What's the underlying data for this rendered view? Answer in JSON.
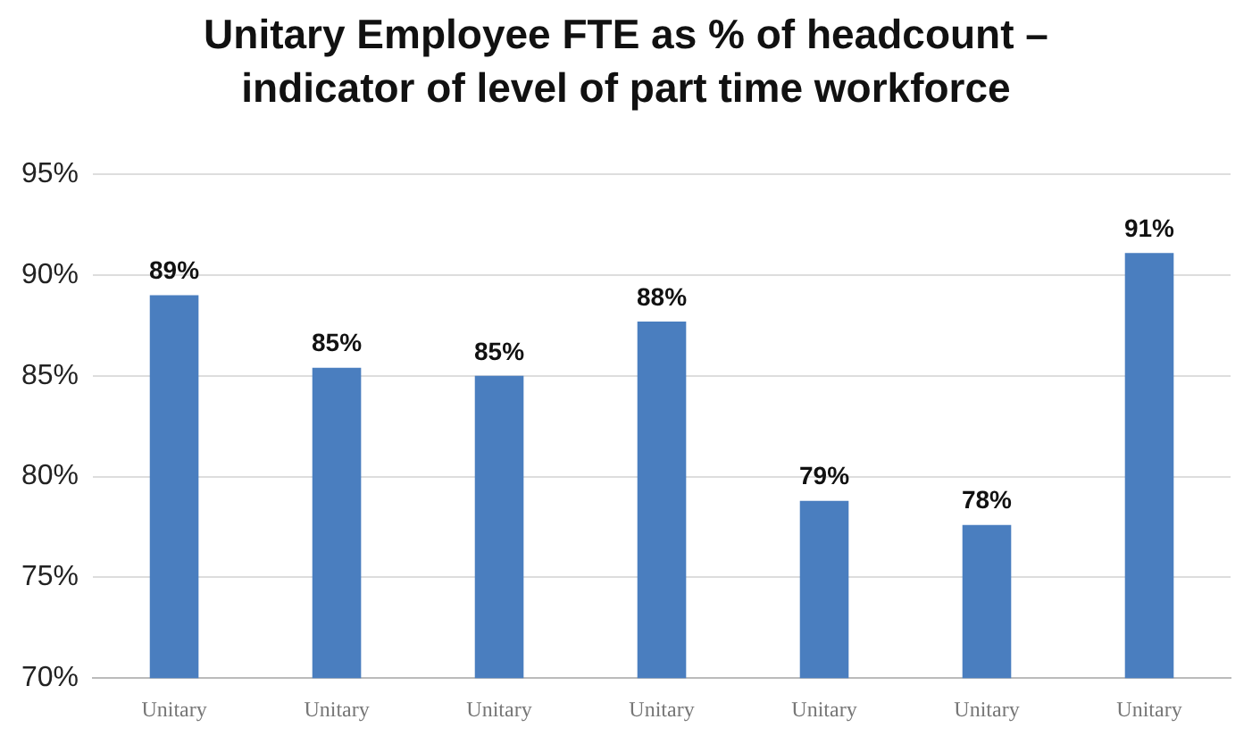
{
  "chart_data": {
    "type": "bar",
    "title": "Unitary Employee FTE as % of headcount –\nindicator of level of part time workforce",
    "categories": [
      "Unitary",
      "Unitary",
      "Unitary",
      "Unitary",
      "Unitary",
      "Unitary",
      "Unitary"
    ],
    "values": [
      89.0,
      85.4,
      85.0,
      87.7,
      78.8,
      77.6,
      91.1
    ],
    "value_labels": [
      "89%",
      "85%",
      "85%",
      "88%",
      "79%",
      "78%",
      "91%"
    ],
    "color": "#4a7ebf",
    "ylim": [
      70,
      95
    ],
    "yticks": [
      {
        "value": 70,
        "label": "70%"
      },
      {
        "value": 75,
        "label": "75%"
      },
      {
        "value": 80,
        "label": "80%"
      },
      {
        "value": 85,
        "label": "85%"
      },
      {
        "value": 90,
        "label": "90%"
      },
      {
        "value": 95,
        "label": "95%"
      }
    ],
    "grid": "y",
    "legend": false
  }
}
